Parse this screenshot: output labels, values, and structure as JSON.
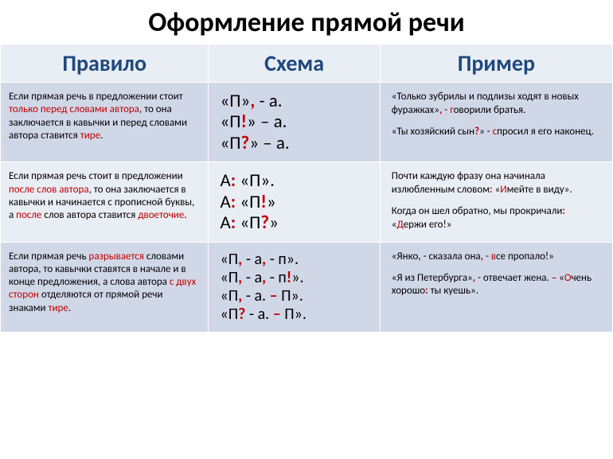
{
  "title": {
    "text": "Оформление прямой речи",
    "fontsize": 34,
    "weight": "bold",
    "color": "#000000"
  },
  "headers": {
    "c1": "Правило",
    "c2": "Схема",
    "c3": "Пример",
    "fontsize": 28,
    "color": "#1f497d",
    "weight": "bold",
    "bg": "#e9edf4"
  },
  "rows": [
    {
      "bg_rule": "#d0d8e8",
      "bg_schema": "#d0d8e8",
      "bg_example": "#d0d8e8",
      "rule_fontsize": 13,
      "rule_plain1": "Если прямая речь в предложении стоит ",
      "rule_red1": "только перед словами автора",
      "rule_plain2": ", то она заключается в кавычки и перед словами автора ставится ",
      "rule_red2": "тире",
      "rule_plain3": ".",
      "schema_fontsize": 23,
      "s1_a": "«П»",
      "s1_b": ",",
      "s1_c": " - а.",
      "s2_a": "«П",
      "s2_b": "!",
      "s2_c": "» – а.",
      "s3_a": "«П",
      "s3_b": "?",
      "s3_c": "» – а.",
      "example_fontsize": 13,
      "ex1_a": "«Только зубрилы и подлизы ходят в новых фуражках»",
      "ex1_b": ",",
      "ex1_c": " - ",
      "ex1_d": "г",
      "ex1_e": "оворили братья.",
      "ex2_a": "«Ты хозяйский сын",
      "ex2_b": "?",
      "ex2_c": "» - ",
      "ex2_d": "с",
      "ex2_e": "просил я его наконец."
    },
    {
      "bg_rule": "#e9edf4",
      "bg_schema": "#e9edf4",
      "bg_example": "#e9edf4",
      "rule_fontsize": 13,
      "rule_plain1": "Если прямая речь стоит в предложении ",
      "rule_red1": "после слов автора",
      "rule_plain2": ", то она заключается в кавычки и начинается с прописной буквы, а ",
      "rule_red2": "после",
      "rule_plain3": " слов автора ставится ",
      "rule_red3": "двоеточие",
      "rule_plain4": ".",
      "schema_fontsize": 23,
      "s1_a": "А",
      "s1_b": ":",
      "s1_c": " «П».",
      "s2_a": "А",
      "s2_b": ":",
      "s2_c": " «П",
      "s2_d": "!",
      "s2_e": "»",
      "s3_a": "А",
      "s3_b": ":",
      "s3_c": " «П",
      "s3_d": "?",
      "s3_e": "»",
      "example_fontsize": 13,
      "ex1_a": "Почти каждую фразу она начинала излюбленным словом",
      "ex1_b": ":",
      "ex1_c": " «",
      "ex1_d": "И",
      "ex1_e": "мейте в виду».",
      "ex2_a": "Когда он шел обратно, мы прокричали",
      "ex2_b": ":",
      "ex2_c": " «",
      "ex2_d": "Д",
      "ex2_e": "ержи его!»"
    },
    {
      "bg_rule": "#d0d8e8",
      "bg_schema": "#d0d8e8",
      "bg_example": "#d0d8e8",
      "rule_fontsize": 13,
      "rule_plain1": "Если прямая речь ",
      "rule_red1": "разрывается",
      "rule_plain2": " словами автора, то кавычки ставятся в начале и в конце предложения, а слова автора ",
      "rule_red2": "с двух сторон",
      "rule_plain3": " отделяются от прямой речи знаками ",
      "rule_red3": "тире",
      "rule_plain4": ".",
      "schema_fontsize": 20,
      "s1_a": "«П",
      "s1_b": ",",
      "s1_c": " - а",
      "s1_d": ",",
      "s1_e": " - п».",
      "s2_a": "«П",
      "s2_b": ",",
      "s2_c": " - а",
      "s2_d": ",",
      "s2_e": " - п",
      "s2_f": "!",
      "s2_g": "».",
      "s3_a": "«П",
      "s3_b": ",",
      "s3_c": " - а.",
      "s3_d": " – ",
      "s3_e": "П».",
      "s4_a": "«П",
      "s4_b": "?",
      "s4_c": " - а.",
      "s4_d": " – ",
      "s4_e": "П».",
      "example_fontsize": 13,
      "ex1_a": "«Янко",
      "ex1_b": ",",
      "ex1_c": " - сказала она",
      "ex1_d": ",",
      "ex1_e": " - ",
      "ex1_f": "в",
      "ex1_g": "се пропало!»",
      "ex2_a": "«Я из Петербурга»",
      "ex2_b": ",",
      "ex2_c": " - отвечает жена.",
      "ex2_d": " – ",
      "ex2_e": "«",
      "ex2_f": "О",
      "ex2_g": "чень хорошо",
      "ex2_h": ":",
      "ex2_i": " ты куешь»."
    }
  ]
}
